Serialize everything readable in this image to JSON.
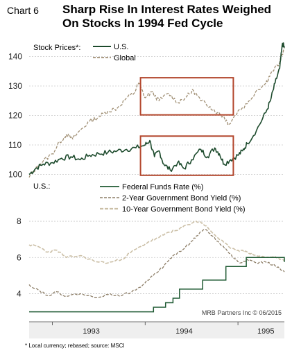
{
  "header": {
    "chart_number": "Chart 6",
    "title_line1": "Sharp Rise In Interest Rates Weighed",
    "title_line2": "On Stocks In 1994 Fed Cycle"
  },
  "footnote": "* Local currency; rebased; source: MSCI",
  "source_note": "MRB Partners Inc © 06/2015",
  "colors": {
    "us_stock": "#1c4a2c",
    "global_stock": "#a08f74",
    "fed_funds": "#1f5a33",
    "yield_2y": "#8c7d66",
    "yield_10y": "#cbbfa6",
    "highlight_box": "#b3472d",
    "gridline": "#c8c8c8",
    "band": "#efefef"
  },
  "chart_data": [
    {
      "type": "line",
      "panel": "top",
      "legend_prefix": "Stock Prices*:",
      "yticks": [
        100,
        110,
        120,
        130,
        140
      ],
      "ylim": [
        98,
        146
      ],
      "xlim": [
        1992.75,
        1995.5
      ],
      "grid": true,
      "legend_position": "top-left",
      "series": [
        {
          "name": "U.S.",
          "style": "solid",
          "points": [
            [
              1992.75,
              100.0
            ],
            [
              1992.82,
              102.0
            ],
            [
              1992.9,
              103.5
            ],
            [
              1993.0,
              104.0
            ],
            [
              1993.1,
              105.5
            ],
            [
              1993.2,
              106.0
            ],
            [
              1993.3,
              105.0
            ],
            [
              1993.4,
              106.5
            ],
            [
              1993.5,
              107.0
            ],
            [
              1993.6,
              107.5
            ],
            [
              1993.7,
              108.0
            ],
            [
              1993.8,
              108.5
            ],
            [
              1993.9,
              109.0
            ],
            [
              1994.0,
              110.0
            ],
            [
              1994.05,
              111.5
            ],
            [
              1994.1,
              106.0
            ],
            [
              1994.15,
              108.0
            ],
            [
              1994.2,
              103.5
            ],
            [
              1994.27,
              101.5
            ],
            [
              1994.35,
              104.0
            ],
            [
              1994.42,
              102.0
            ],
            [
              1994.5,
              105.0
            ],
            [
              1994.6,
              108.5
            ],
            [
              1994.67,
              106.0
            ],
            [
              1994.75,
              109.0
            ],
            [
              1994.8,
              107.0
            ],
            [
              1994.85,
              103.5
            ],
            [
              1994.92,
              105.0
            ],
            [
              1995.0,
              106.5
            ],
            [
              1995.05,
              108.0
            ],
            [
              1995.1,
              110.5
            ],
            [
              1995.2,
              115.0
            ],
            [
              1995.3,
              121.0
            ],
            [
              1995.35,
              125.0
            ],
            [
              1995.4,
              131.0
            ],
            [
              1995.45,
              136.0
            ],
            [
              1995.48,
              144.5
            ],
            [
              1995.5,
              143.0
            ]
          ]
        },
        {
          "name": "Global",
          "style": "dashed",
          "points": [
            [
              1992.75,
              99.0
            ],
            [
              1992.82,
              102.0
            ],
            [
              1992.9,
              104.5
            ],
            [
              1993.0,
              107.0
            ],
            [
              1993.08,
              111.0
            ],
            [
              1993.15,
              113.5
            ],
            [
              1993.22,
              112.0
            ],
            [
              1993.3,
              115.0
            ],
            [
              1993.4,
              118.0
            ],
            [
              1993.5,
              119.5
            ],
            [
              1993.6,
              121.5
            ],
            [
              1993.7,
              122.5
            ],
            [
              1993.8,
              126.0
            ],
            [
              1993.88,
              127.5
            ],
            [
              1993.93,
              131.0
            ],
            [
              1994.0,
              126.0
            ],
            [
              1994.07,
              128.0
            ],
            [
              1994.15,
              125.0
            ],
            [
              1994.25,
              127.5
            ],
            [
              1994.35,
              124.5
            ],
            [
              1994.45,
              126.5
            ],
            [
              1994.52,
              128.5
            ],
            [
              1994.6,
              125.0
            ],
            [
              1994.7,
              123.0
            ],
            [
              1994.78,
              121.0
            ],
            [
              1994.85,
              119.5
            ],
            [
              1994.9,
              117.0
            ],
            [
              1995.0,
              121.5
            ],
            [
              1995.1,
              124.0
            ],
            [
              1995.2,
              128.5
            ],
            [
              1995.3,
              131.0
            ],
            [
              1995.35,
              134.0
            ],
            [
              1995.45,
              138.0
            ],
            [
              1995.5,
              143.0
            ]
          ]
        }
      ],
      "highlight_boxes": [
        {
          "x": [
            1993.95,
            1994.95
          ],
          "y": [
            120.2,
            132.8
          ]
        },
        {
          "x": [
            1993.95,
            1994.95
          ],
          "y": [
            99.7,
            113.0
          ]
        }
      ]
    },
    {
      "type": "line",
      "panel": "bottom",
      "legend_prefix": "U.S.:",
      "yticks": [
        4,
        6,
        8
      ],
      "ylim": [
        2.6,
        8.5
      ],
      "xlim": [
        1992.75,
        1995.5
      ],
      "xticks": [
        "1993",
        "1994",
        "1995"
      ],
      "xtick_positions": [
        1993.5,
        1994.5,
        1995.5
      ],
      "grid": true,
      "legend_position": "top-center",
      "series": [
        {
          "name": "Federal Funds Rate (%)",
          "style": "step",
          "points": [
            [
              1992.75,
              3.0
            ],
            [
              1994.09,
              3.25
            ],
            [
              1994.22,
              3.5
            ],
            [
              1994.3,
              3.75
            ],
            [
              1994.37,
              4.25
            ],
            [
              1994.62,
              4.75
            ],
            [
              1994.87,
              5.5
            ],
            [
              1995.09,
              6.0
            ],
            [
              1995.52,
              5.75
            ]
          ]
        },
        {
          "name": "2-Year Government Bond Yield (%)",
          "style": "dashed",
          "points": [
            [
              1992.75,
              4.5
            ],
            [
              1992.85,
              4.2
            ],
            [
              1992.95,
              3.9
            ],
            [
              1993.05,
              4.1
            ],
            [
              1993.15,
              3.85
            ],
            [
              1993.3,
              4.0
            ],
            [
              1993.45,
              3.8
            ],
            [
              1993.6,
              3.95
            ],
            [
              1993.75,
              3.9
            ],
            [
              1993.9,
              4.2
            ],
            [
              1994.0,
              4.6
            ],
            [
              1994.1,
              5.1
            ],
            [
              1994.2,
              5.5
            ],
            [
              1994.3,
              6.1
            ],
            [
              1994.4,
              6.4
            ],
            [
              1994.5,
              6.9
            ],
            [
              1994.58,
              7.3
            ],
            [
              1994.65,
              7.55
            ],
            [
              1994.72,
              7.2
            ],
            [
              1994.8,
              6.8
            ],
            [
              1994.88,
              6.4
            ],
            [
              1994.95,
              6.0
            ],
            [
              1995.02,
              5.7
            ],
            [
              1995.1,
              5.9
            ],
            [
              1995.2,
              5.7
            ],
            [
              1995.3,
              5.75
            ],
            [
              1995.4,
              5.55
            ],
            [
              1995.5,
              5.2
            ]
          ]
        },
        {
          "name": "10-Year Government Bond Yield (%)",
          "style": "dashed",
          "points": [
            [
              1992.75,
              6.7
            ],
            [
              1992.85,
              6.6
            ],
            [
              1992.95,
              6.3
            ],
            [
              1993.05,
              6.4
            ],
            [
              1993.15,
              6.0
            ],
            [
              1993.3,
              6.1
            ],
            [
              1993.45,
              5.8
            ],
            [
              1993.6,
              5.7
            ],
            [
              1993.75,
              5.9
            ],
            [
              1993.85,
              6.3
            ],
            [
              1993.95,
              6.6
            ],
            [
              1994.05,
              6.9
            ],
            [
              1994.15,
              7.1
            ],
            [
              1994.25,
              7.4
            ],
            [
              1994.35,
              7.5
            ],
            [
              1994.45,
              7.8
            ],
            [
              1994.55,
              8.0
            ],
            [
              1994.62,
              7.9
            ],
            [
              1994.7,
              7.5
            ],
            [
              1994.8,
              7.0
            ],
            [
              1994.9,
              6.6
            ],
            [
              1995.0,
              6.4
            ],
            [
              1995.1,
              6.3
            ],
            [
              1995.2,
              6.1
            ],
            [
              1995.3,
              6.0
            ],
            [
              1995.4,
              6.05
            ],
            [
              1995.5,
              5.8
            ]
          ]
        }
      ]
    }
  ]
}
